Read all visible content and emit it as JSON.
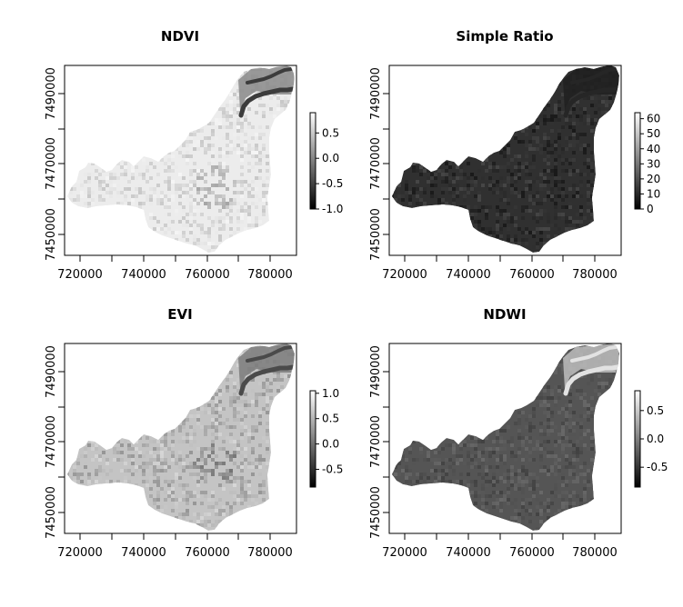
{
  "panels": [
    {
      "title": "NDVI",
      "x_ticks": [
        "720000",
        "740000",
        "760000",
        "780000"
      ],
      "y_ticks": [
        "7450000",
        "7470000",
        "7490000"
      ],
      "legend_ticks": [
        "0.5",
        "0.0",
        "-0.5",
        "-1.0"
      ],
      "legend_values": [
        0.5,
        0.0,
        -0.5,
        -1.0
      ],
      "legend_range": [
        -1.0,
        0.9
      ],
      "tone": {
        "base": "#ececec",
        "var": 10,
        "patch_min": 200,
        "patch_max": 245,
        "river": "#3c3c3c",
        "ne": "#8a8a8a"
      }
    },
    {
      "title": "Simple Ratio",
      "x_ticks": [
        "720000",
        "740000",
        "760000",
        "780000"
      ],
      "y_ticks": [
        "7450000",
        "7470000",
        "7490000"
      ],
      "legend_ticks": [
        "60",
        "50",
        "40",
        "30",
        "20",
        "10",
        "0"
      ],
      "legend_values": [
        60,
        50,
        40,
        30,
        20,
        10,
        0
      ],
      "legend_range": [
        0,
        64
      ],
      "tone": {
        "base": "#303030",
        "var": 8,
        "patch_min": 25,
        "patch_max": 70,
        "river": "#262626",
        "ne": "#202020"
      }
    },
    {
      "title": "EVI",
      "x_ticks": [
        "720000",
        "740000",
        "760000",
        "780000"
      ],
      "y_ticks": [
        "7450000",
        "7470000",
        "7490000"
      ],
      "legend_ticks": [
        "1.0",
        "0.5",
        "0.0",
        "-0.5"
      ],
      "legend_values": [
        1.0,
        0.5,
        0.0,
        -0.5
      ],
      "legend_range": [
        -0.85,
        1.05
      ],
      "tone": {
        "base": "#c4c4c4",
        "var": 8,
        "patch_min": 150,
        "patch_max": 215,
        "river": "#4a4a4a",
        "ne": "#7c7c7c"
      }
    },
    {
      "title": "NDWI",
      "x_ticks": [
        "720000",
        "740000",
        "760000",
        "780000"
      ],
      "y_ticks": [
        "7450000",
        "7470000",
        "7490000"
      ],
      "legend_ticks": [
        "0.5",
        "0.0",
        "-0.5"
      ],
      "legend_values": [
        0.5,
        0.0,
        -0.5
      ],
      "legend_range": [
        -0.85,
        0.85
      ],
      "tone": {
        "base": "#555555",
        "var": 7,
        "patch_min": 65,
        "patch_max": 105,
        "river": "#e2e2e2",
        "ne": "#bdbdbd"
      }
    }
  ],
  "map_extent": {
    "x": [
      715000,
      786000
    ],
    "y": [
      7444000,
      7498000
    ]
  },
  "tick_x_values": [
    720000,
    740000,
    760000,
    780000
  ],
  "tick_y_values": [
    7450000,
    7470000,
    7490000
  ],
  "colors": {
    "axis": "#000000",
    "background": "#ffffff"
  }
}
